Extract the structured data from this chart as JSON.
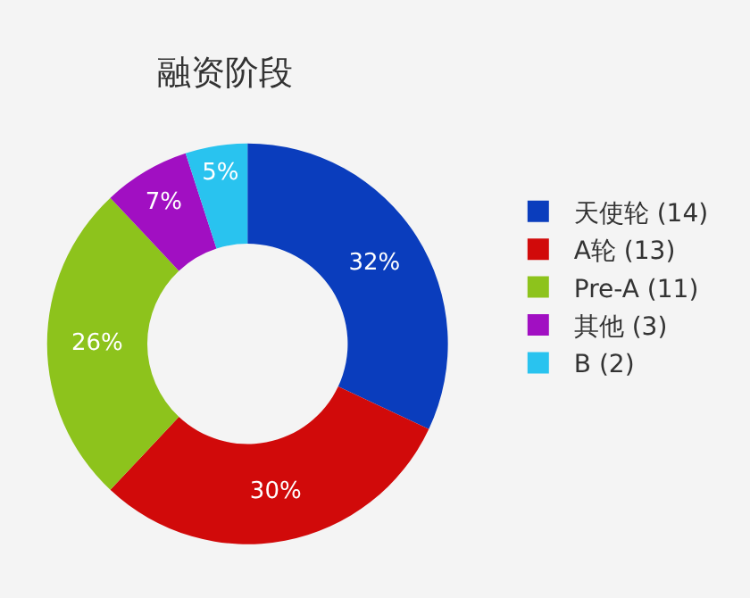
{
  "chart_data": {
    "type": "donut",
    "title": "融资阶段",
    "categories": [
      "天使轮 (14)",
      "A轮 (13)",
      "Pre-A (11)",
      "其他 (3)",
      "B (2)"
    ],
    "values": [
      32,
      30,
      26,
      7,
      5
    ],
    "value_labels": [
      "32%",
      "30%",
      "26%",
      "7%",
      "5%"
    ],
    "colors": [
      "#0a3dbd",
      "#d10a0a",
      "#8dc31c",
      "#a10fc2",
      "#29c3ef"
    ],
    "legend": "right"
  }
}
